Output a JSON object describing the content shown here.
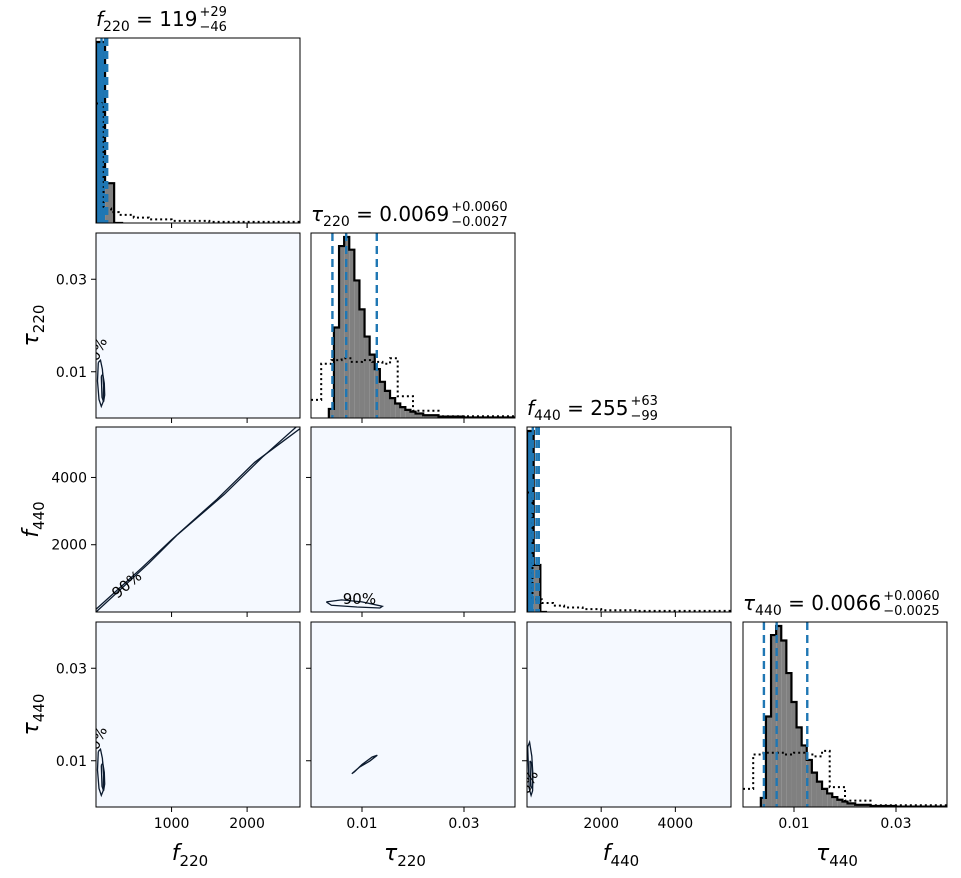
{
  "chart_data": {
    "type": "corner",
    "parameters": [
      {
        "id": "f220",
        "symbol": "f",
        "subscript": "220",
        "axis_range": [
          0,
          2700
        ],
        "ticks": [
          1000,
          2000
        ],
        "tick_labels": [
          "1000",
          "2000"
        ],
        "summary": {
          "median": "119",
          "plus": "+29",
          "minus": "−46"
        }
      },
      {
        "id": "tau220",
        "symbol": "τ",
        "subscript": "220",
        "axis_range": [
          0,
          0.04
        ],
        "ticks": [
          0.01,
          0.03
        ],
        "tick_labels": [
          "0.01",
          "0.03"
        ],
        "summary": {
          "median": "0.0069",
          "plus": "+0.0060",
          "minus": "−0.0027"
        }
      },
      {
        "id": "f440",
        "symbol": "f",
        "subscript": "440",
        "axis_range": [
          0,
          5500
        ],
        "ticks": [
          2000,
          4000
        ],
        "tick_labels": [
          "2000",
          "4000"
        ],
        "summary": {
          "median": "255",
          "plus": "+63",
          "minus": "−99"
        }
      },
      {
        "id": "tau440",
        "symbol": "τ",
        "subscript": "440",
        "axis_range": [
          0,
          0.04
        ],
        "ticks": [
          0.01,
          0.03
        ],
        "tick_labels": [
          "0.01",
          "0.03"
        ],
        "summary": {
          "median": "0.0066",
          "plus": "+0.0060",
          "minus": "−0.0025"
        }
      }
    ],
    "title_separator": " = ",
    "contour_label": "90%",
    "histograms": [
      {
        "param": "f220",
        "quantiles": [
          73,
          119,
          148
        ],
        "bins": [
          0,
          120,
          240,
          360
        ],
        "posterior": [
          1.0,
          0.22,
          0.0
        ],
        "prior": {
          "x": [
            0,
            100,
            100,
            200,
            300,
            500,
            700,
            1000,
            1500,
            2700
          ],
          "y": [
            0.66,
            0.66,
            0.08,
            0.06,
            0.045,
            0.03,
            0.02,
            0.012,
            0.006,
            0.004
          ]
        }
      },
      {
        "param": "tau220",
        "quantiles": [
          0.0042,
          0.0069,
          0.0129
        ],
        "bins": [
          0.0035,
          0.0045,
          0.0055,
          0.0065,
          0.0075,
          0.0085,
          0.0095,
          0.0105,
          0.0115,
          0.0125,
          0.0135,
          0.0145,
          0.0155,
          0.0165,
          0.0175,
          0.0185,
          0.0195,
          0.0205,
          0.022,
          0.025,
          0.03,
          0.04
        ],
        "posterior": [
          0.05,
          0.5,
          0.95,
          1.0,
          0.93,
          0.76,
          0.6,
          0.45,
          0.35,
          0.27,
          0.2,
          0.15,
          0.11,
          0.08,
          0.06,
          0.045,
          0.035,
          0.025,
          0.015,
          0.008,
          0.003
        ],
        "prior": {
          "x": [
            0.0,
            0.002,
            0.004,
            0.006,
            0.008,
            0.01,
            0.012,
            0.014,
            0.0155,
            0.017,
            0.02,
            0.025,
            0.04
          ],
          "y": [
            0.1,
            0.3,
            0.32,
            0.33,
            0.31,
            0.32,
            0.31,
            0.3,
            0.33,
            0.12,
            0.04,
            0.01,
            0.0
          ]
        }
      },
      {
        "param": "f440",
        "quantiles": [
          156,
          255,
          318
        ],
        "bins": [
          0,
          180,
          360,
          540
        ],
        "posterior": [
          1.0,
          0.26,
          0.0
        ],
        "prior": {
          "x": [
            0,
            150,
            150,
            400,
            700,
            1000,
            1500,
            2000,
            3000,
            5500
          ],
          "y": [
            0.66,
            0.66,
            0.07,
            0.05,
            0.035,
            0.025,
            0.016,
            0.01,
            0.006,
            0.003
          ]
        }
      },
      {
        "param": "tau440",
        "quantiles": [
          0.0041,
          0.0066,
          0.0126
        ],
        "bins": [
          0.0035,
          0.0045,
          0.0055,
          0.0065,
          0.0075,
          0.0085,
          0.0095,
          0.0105,
          0.0115,
          0.0125,
          0.0135,
          0.0145,
          0.0155,
          0.0165,
          0.0175,
          0.0185,
          0.0195,
          0.0205,
          0.022,
          0.025,
          0.03,
          0.04
        ],
        "posterior": [
          0.05,
          0.5,
          0.95,
          1.0,
          0.92,
          0.74,
          0.58,
          0.44,
          0.34,
          0.26,
          0.19,
          0.14,
          0.1,
          0.075,
          0.055,
          0.04,
          0.03,
          0.02,
          0.012,
          0.006,
          0.002
        ],
        "prior": {
          "x": [
            0.0,
            0.002,
            0.004,
            0.006,
            0.008,
            0.01,
            0.012,
            0.014,
            0.0155,
            0.017,
            0.02,
            0.025,
            0.04
          ],
          "y": [
            0.1,
            0.29,
            0.3,
            0.3,
            0.29,
            0.3,
            0.29,
            0.28,
            0.31,
            0.11,
            0.035,
            0.01,
            0.0
          ]
        }
      }
    ],
    "contours": [
      {
        "x": "f220",
        "y": "tau220",
        "label": "90%",
        "label_at": [
          60,
          0.0135
        ],
        "label_rotation": -65,
        "paths": [
          {
            "x": [
              30,
              60,
              85,
              100,
              95,
              70,
              40,
              20,
              30
            ],
            "y": [
              0.012,
              0.0125,
              0.0105,
              0.007,
              0.0035,
              0.0025,
              0.004,
              0.008,
              0.012
            ]
          },
          {
            "x": [
              70,
              90,
              110,
              115,
              100,
              80,
              70
            ],
            "y": [
              0.009,
              0.0095,
              0.0075,
              0.005,
              0.0035,
              0.0045,
              0.009
            ]
          }
        ]
      },
      {
        "x": "f220",
        "y": "f440",
        "label": "90%",
        "label_at": [
          450,
          700
        ],
        "label_rotation": -40,
        "paths": [
          {
            "x": [
              0,
              700,
              1080,
              1700,
              2200,
              2700
            ],
            "y": [
              0,
              1450,
              2300,
              3500,
              4600,
              5600
            ]
          },
          {
            "x": [
              0,
              600,
              1000,
              1600,
              2100,
              2700
            ],
            "y": [
              80,
              1300,
              2150,
              3350,
              4450,
              5450
            ]
          }
        ]
      },
      {
        "x": "tau220",
        "y": "f440",
        "label": "90%",
        "label_at": [
          0.0095,
          240
        ],
        "label_rotation": 0,
        "paths": [
          {
            "x": [
              0.003,
              0.006,
              0.01,
              0.014,
              0.0135,
              0.009,
              0.004,
              0.003
            ],
            "y": [
              300,
              360,
              300,
              170,
              120,
              150,
              200,
              300
            ]
          }
        ]
      },
      {
        "x": "f220",
        "y": "tau440",
        "label": "90%",
        "label_at": [
          60,
          0.0135
        ],
        "label_rotation": -65,
        "paths": [
          {
            "x": [
              30,
              60,
              85,
              100,
              95,
              70,
              40,
              20,
              30
            ],
            "y": [
              0.012,
              0.0125,
              0.0105,
              0.007,
              0.0035,
              0.0025,
              0.004,
              0.008,
              0.012
            ]
          },
          {
            "x": [
              70,
              90,
              110,
              115,
              100,
              80,
              70
            ],
            "y": [
              0.009,
              0.0095,
              0.0075,
              0.005,
              0.0035,
              0.0045,
              0.009
            ]
          }
        ]
      },
      {
        "x": "tau220",
        "y": "tau440",
        "label": "",
        "label_at": null,
        "label_rotation": 0,
        "paths": [
          {
            "x": [
              0.008,
              0.0095,
              0.0115,
              0.013,
              0.012,
              0.01,
              0.0085,
              0.008
            ],
            "y": [
              0.0072,
              0.0086,
              0.0099,
              0.0112,
              0.0108,
              0.0092,
              0.0076,
              0.0072
            ]
          }
        ]
      },
      {
        "x": "f440",
        "y": "tau440",
        "label": "90%",
        "label_at": [
          120,
          0.004
        ],
        "label_rotation": -65,
        "paths": [
          {
            "x": [
              20,
              70,
              130,
              160,
              150,
              110,
              60,
              20
            ],
            "y": [
              0.013,
              0.014,
              0.011,
              0.007,
              0.0035,
              0.0025,
              0.004,
              0.013
            ]
          },
          {
            "x": [
              80,
              120,
              150,
              140,
              100,
              80
            ],
            "y": [
              0.01,
              0.0095,
              0.006,
              0.004,
              0.0045,
              0.01
            ]
          }
        ]
      }
    ],
    "colors": {
      "quantile_line": "#1f77b4",
      "posterior_fill": "#808080",
      "peak_bin_fill": "#1f77b4",
      "panel_background": "#f5f9ff",
      "prior_line": "#000000"
    }
  }
}
